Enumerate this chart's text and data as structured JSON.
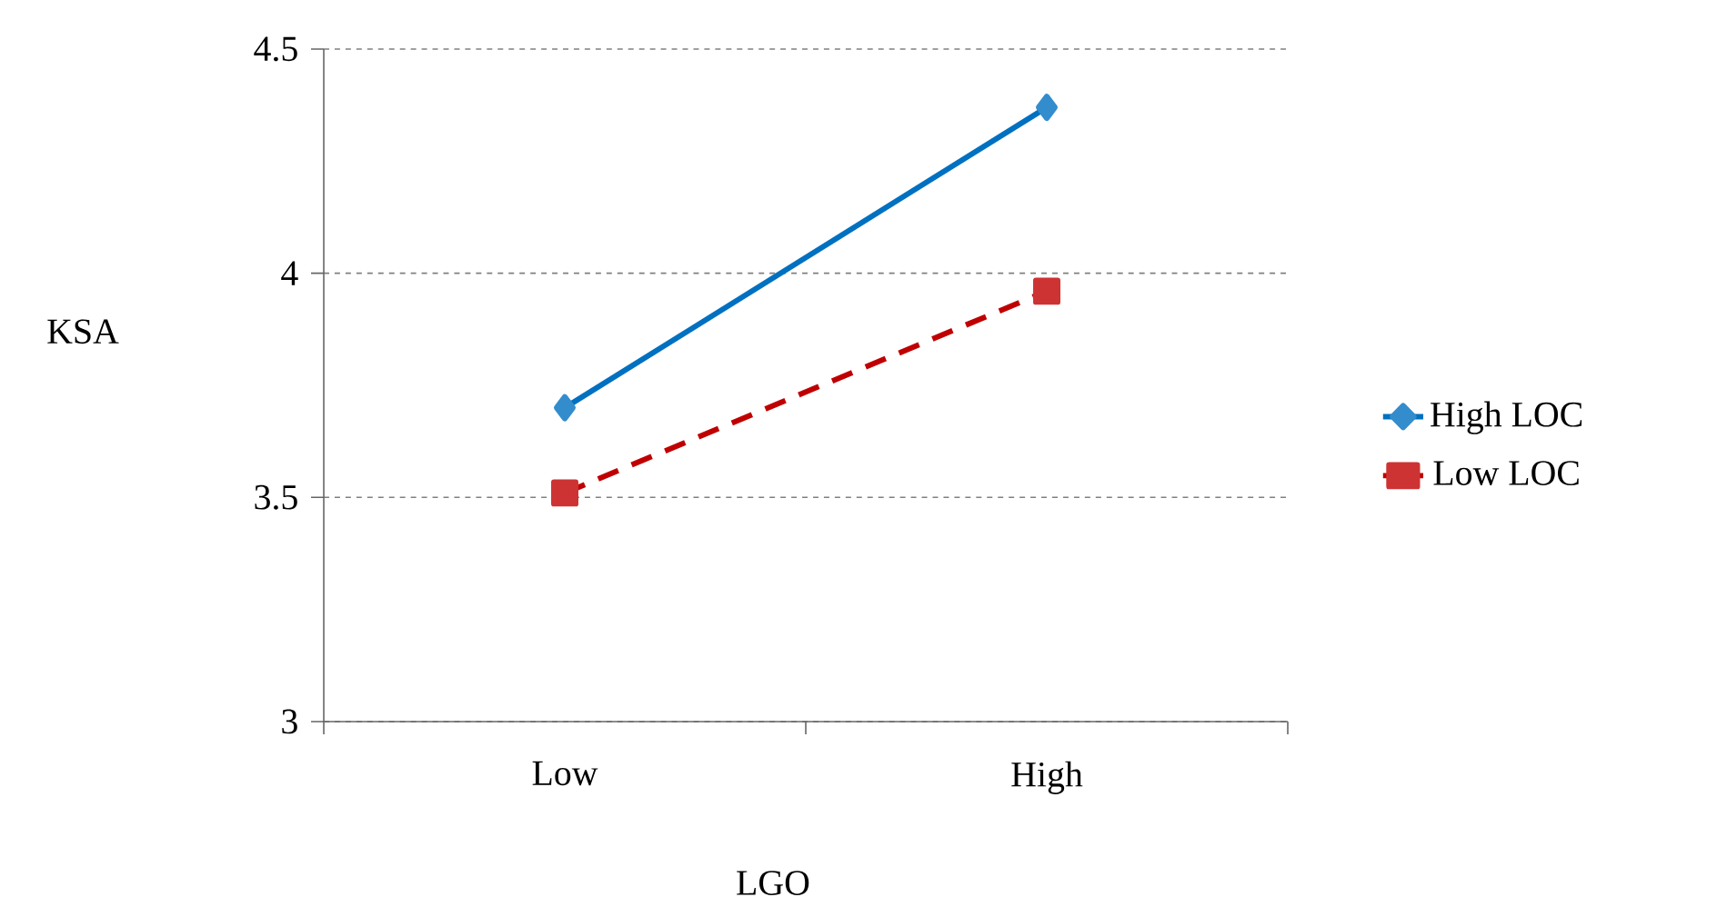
{
  "chart_data": {
    "type": "line",
    "xlabel": "LGO",
    "ylabel": "KSA",
    "categories": [
      "Low",
      "High"
    ],
    "series": [
      {
        "name": "High LOC",
        "color": "#0070c0",
        "values": [
          3.7,
          4.37
        ],
        "marker": "diamond",
        "line_style": "solid"
      },
      {
        "name": "Low LOC",
        "color": "#c00000",
        "values": [
          3.51,
          3.96
        ],
        "marker": "square",
        "line_style": "dashed"
      }
    ],
    "ylim": [
      3,
      4.5
    ],
    "yticks": [
      3,
      3.5,
      4,
      4.5
    ],
    "grid": "y",
    "legend": "right"
  }
}
